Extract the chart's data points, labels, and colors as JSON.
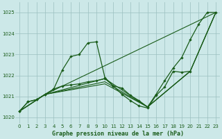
{
  "title": "Graphe pression niveau de la mer (hPa)",
  "bg_color": "#cce8e8",
  "grid_color": "#9bbfbf",
  "line_color": "#1a5c1a",
  "xlim": [
    -0.5,
    23.5
  ],
  "ylim": [
    1019.7,
    1025.5
  ],
  "yticks": [
    1020,
    1021,
    1022,
    1023,
    1024,
    1025
  ],
  "xticks": [
    0,
    1,
    2,
    3,
    4,
    5,
    6,
    7,
    8,
    9,
    10,
    11,
    12,
    13,
    14,
    15,
    16,
    17,
    18,
    19,
    20,
    21,
    22,
    23
  ],
  "curve_A_x": [
    0,
    1,
    2,
    3,
    4,
    5,
    6,
    7,
    8,
    9,
    10,
    11,
    12,
    13,
    14,
    15,
    16,
    17,
    18,
    19,
    20,
    21,
    22,
    23
  ],
  "curve_A_y": [
    1020.3,
    1020.75,
    1020.85,
    1021.1,
    1021.35,
    1022.25,
    1022.9,
    1023.0,
    1023.55,
    1023.6,
    1021.9,
    1021.5,
    1021.4,
    1021.05,
    1020.8,
    1020.5,
    1021.1,
    1021.75,
    1022.35,
    1022.85,
    1023.7,
    1024.45,
    1025.0,
    1025.0
  ],
  "curve_B_x": [
    0,
    1,
    2,
    3,
    4,
    5,
    6,
    7,
    8,
    9,
    10,
    11,
    12,
    13,
    14,
    15,
    16,
    17,
    18,
    19,
    20
  ],
  "curve_B_y": [
    1020.3,
    1020.75,
    1020.85,
    1021.1,
    1021.35,
    1021.5,
    1021.55,
    1021.6,
    1021.7,
    1021.75,
    1021.85,
    1021.5,
    1021.1,
    1020.8,
    1020.55,
    1020.45,
    1021.05,
    1021.45,
    1022.2,
    1022.15,
    1022.2
  ],
  "fan_line1_x": [
    0,
    3,
    23
  ],
  "fan_line1_y": [
    1020.3,
    1021.1,
    1025.0
  ],
  "fan_line2_x": [
    0,
    3,
    10,
    15,
    20,
    23
  ],
  "fan_line2_y": [
    1020.3,
    1021.1,
    1021.85,
    1020.5,
    1022.2,
    1025.0
  ],
  "fan_line3_x": [
    0,
    3,
    10,
    15,
    20,
    23
  ],
  "fan_line3_y": [
    1020.3,
    1021.1,
    1021.7,
    1020.5,
    1022.2,
    1025.0
  ],
  "fan_line4_x": [
    0,
    3,
    10,
    15,
    20,
    23
  ],
  "fan_line4_y": [
    1020.3,
    1021.1,
    1021.6,
    1020.5,
    1022.2,
    1025.0
  ]
}
